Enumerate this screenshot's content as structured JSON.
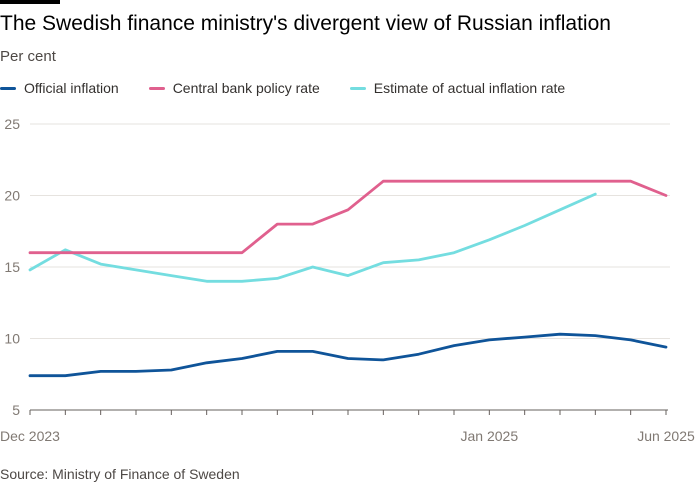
{
  "header": {
    "title": "The Swedish finance ministry's divergent view of Russian inflation",
    "subtitle": "Per cent"
  },
  "footer": {
    "source": "Source: Ministry of Finance of Sweden"
  },
  "colors": {
    "official": "#0f5499",
    "policy": "#e0608e",
    "estimate": "#74dde0",
    "grid": "#e6e3df",
    "axis": "#66605c",
    "tick": "#807973"
  },
  "chart_data": {
    "type": "line",
    "title": "The Swedish finance ministry's divergent view of Russian inflation",
    "ylabel": "Per cent",
    "xlabel": "",
    "ylim": [
      5,
      25
    ],
    "yticks": [
      5,
      10,
      15,
      20,
      25
    ],
    "grid": true,
    "legend_position": "top-left",
    "x_labels": [
      {
        "index": 0,
        "label": "Dec 2023"
      },
      {
        "index": 13,
        "label": "Jan 2025"
      },
      {
        "index": 18,
        "label": "Jun 2025"
      }
    ],
    "x": [
      "Dec 2023",
      "Jan 2024",
      "Feb 2024",
      "Mar 2024",
      "Apr 2024",
      "May 2024",
      "Jun 2024",
      "Jul 2024",
      "Aug 2024",
      "Sep 2024",
      "Oct 2024",
      "Nov 2024",
      "Dec 2024",
      "Jan 2025",
      "Feb 2025",
      "Mar 2025",
      "Apr 2025",
      "May 2025",
      "Jun 2025"
    ],
    "series": [
      {
        "name": "Official inflation",
        "color_key": "official",
        "values": [
          7.4,
          7.4,
          7.7,
          7.7,
          7.8,
          8.3,
          8.6,
          9.1,
          9.1,
          8.6,
          8.5,
          8.9,
          9.5,
          9.9,
          10.1,
          10.3,
          10.2,
          9.9,
          9.4
        ]
      },
      {
        "name": "Central bank policy rate",
        "color_key": "policy",
        "values": [
          16,
          16,
          16,
          16,
          16,
          16,
          16,
          18,
          18,
          19,
          21,
          21,
          21,
          21,
          21,
          21,
          21,
          21,
          20
        ]
      },
      {
        "name": "Estimate of actual inflation rate",
        "color_key": "estimate",
        "values": [
          14.8,
          16.2,
          15.2,
          14.8,
          14.4,
          14.0,
          14.0,
          14.2,
          15.0,
          14.4,
          15.3,
          15.5,
          16.0,
          16.9,
          17.9,
          19.0,
          20.1,
          null,
          null
        ]
      }
    ]
  }
}
